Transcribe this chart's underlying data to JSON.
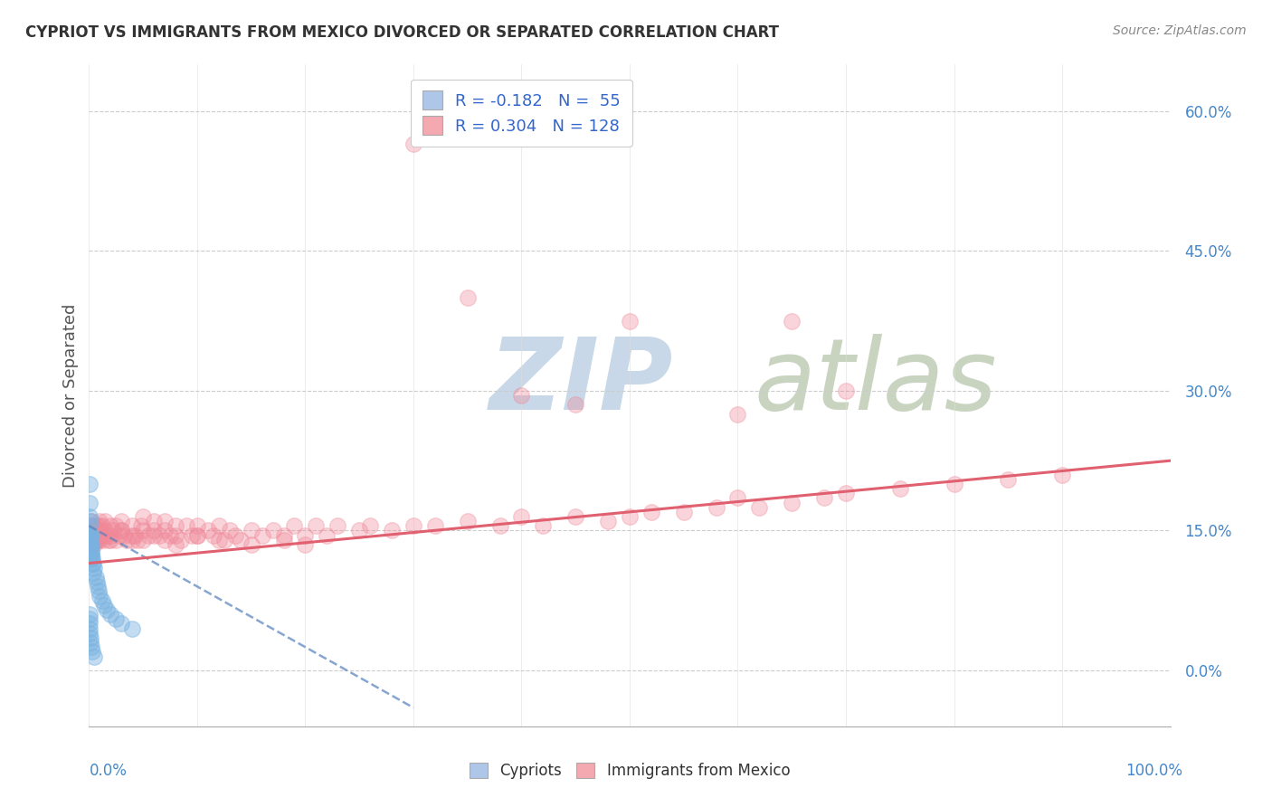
{
  "title": "CYPRIOT VS IMMIGRANTS FROM MEXICO DIVORCED OR SEPARATED CORRELATION CHART",
  "source_text": "Source: ZipAtlas.com",
  "ylabel": "Divorced or Separated",
  "watermark": "ZIPatlas",
  "bg_color": "#ffffff",
  "grid_color": "#cccccc",
  "cypriot_dot_color": "#7ab3e0",
  "mexico_dot_color": "#f08898",
  "cypriot_line_color": "#5580bb",
  "mexico_line_color": "#e06070",
  "legend_box_color_cypriot": "#aec6e8",
  "legend_box_color_mexico": "#f4a8b0",
  "title_color": "#333333",
  "watermark_color_zip": "#c8d8e8",
  "watermark_color_atlas": "#c8d4c0",
  "R_cypriot": -0.182,
  "N_cypriot": 55,
  "R_mexico": 0.304,
  "N_mexico": 128,
  "xlim": [
    0.0,
    1.0
  ],
  "ylim": [
    -0.06,
    0.65
  ],
  "yticks": [
    0.0,
    0.15,
    0.3,
    0.45,
    0.6
  ],
  "xtick_left_label": "0.0%",
  "xtick_right_label": "100.0%",
  "cypriot_trend_x0": 0.0,
  "cypriot_trend_x1": 0.3,
  "cypriot_trend_y0": 0.155,
  "cypriot_trend_y1": -0.04,
  "mexico_trend_x0": 0.0,
  "mexico_trend_x1": 1.0,
  "mexico_trend_y0": 0.115,
  "mexico_trend_y1": 0.225,
  "cypriot_x": [
    0.0003,
    0.0003,
    0.0005,
    0.0005,
    0.0005,
    0.0006,
    0.0006,
    0.0007,
    0.0007,
    0.0008,
    0.0008,
    0.0009,
    0.0009,
    0.001,
    0.001,
    0.0012,
    0.0012,
    0.0013,
    0.0014,
    0.0015,
    0.0016,
    0.0017,
    0.0018,
    0.002,
    0.002,
    0.0022,
    0.0023,
    0.0025,
    0.003,
    0.003,
    0.004,
    0.004,
    0.005,
    0.006,
    0.007,
    0.008,
    0.009,
    0.01,
    0.012,
    0.014,
    0.016,
    0.02,
    0.025,
    0.03,
    0.04,
    0.0003,
    0.0004,
    0.0005,
    0.0006,
    0.0007,
    0.001,
    0.0015,
    0.002,
    0.003,
    0.005
  ],
  "cypriot_y": [
    0.2,
    0.18,
    0.165,
    0.155,
    0.145,
    0.14,
    0.13,
    0.145,
    0.135,
    0.14,
    0.13,
    0.145,
    0.125,
    0.16,
    0.13,
    0.145,
    0.125,
    0.14,
    0.135,
    0.14,
    0.13,
    0.14,
    0.135,
    0.145,
    0.125,
    0.13,
    0.12,
    0.125,
    0.12,
    0.115,
    0.115,
    0.105,
    0.11,
    0.1,
    0.095,
    0.09,
    0.085,
    0.08,
    0.075,
    0.07,
    0.065,
    0.06,
    0.055,
    0.05,
    0.045,
    0.06,
    0.055,
    0.05,
    0.045,
    0.04,
    0.035,
    0.03,
    0.025,
    0.02,
    0.015
  ],
  "mexico_x": [
    0.001,
    0.001,
    0.001,
    0.002,
    0.002,
    0.002,
    0.003,
    0.003,
    0.003,
    0.004,
    0.004,
    0.005,
    0.005,
    0.005,
    0.006,
    0.006,
    0.007,
    0.007,
    0.008,
    0.008,
    0.009,
    0.01,
    0.01,
    0.01,
    0.012,
    0.012,
    0.013,
    0.015,
    0.015,
    0.016,
    0.018,
    0.02,
    0.02,
    0.022,
    0.025,
    0.025,
    0.028,
    0.03,
    0.03,
    0.032,
    0.035,
    0.04,
    0.04,
    0.042,
    0.045,
    0.048,
    0.05,
    0.05,
    0.055,
    0.06,
    0.06,
    0.065,
    0.07,
    0.07,
    0.075,
    0.08,
    0.08,
    0.085,
    0.09,
    0.095,
    0.1,
    0.1,
    0.11,
    0.115,
    0.12,
    0.125,
    0.13,
    0.135,
    0.14,
    0.15,
    0.16,
    0.17,
    0.18,
    0.19,
    0.2,
    0.21,
    0.22,
    0.23,
    0.25,
    0.26,
    0.28,
    0.3,
    0.32,
    0.35,
    0.38,
    0.4,
    0.42,
    0.45,
    0.48,
    0.5,
    0.52,
    0.55,
    0.58,
    0.6,
    0.62,
    0.65,
    0.68,
    0.7,
    0.75,
    0.8,
    0.85,
    0.9,
    0.5,
    0.6,
    0.65,
    0.7,
    0.3,
    0.35,
    0.4,
    0.45,
    0.002,
    0.003,
    0.005,
    0.007,
    0.01,
    0.015,
    0.02,
    0.03,
    0.04,
    0.05,
    0.06,
    0.07,
    0.08,
    0.1,
    0.12,
    0.15,
    0.18,
    0.2
  ],
  "mexico_y": [
    0.155,
    0.145,
    0.135,
    0.16,
    0.15,
    0.14,
    0.155,
    0.145,
    0.135,
    0.15,
    0.14,
    0.155,
    0.145,
    0.135,
    0.15,
    0.14,
    0.155,
    0.145,
    0.15,
    0.14,
    0.145,
    0.16,
    0.15,
    0.14,
    0.155,
    0.145,
    0.14,
    0.16,
    0.15,
    0.145,
    0.14,
    0.155,
    0.145,
    0.15,
    0.155,
    0.14,
    0.145,
    0.16,
    0.15,
    0.145,
    0.14,
    0.155,
    0.14,
    0.145,
    0.14,
    0.155,
    0.165,
    0.15,
    0.145,
    0.16,
    0.15,
    0.145,
    0.16,
    0.15,
    0.145,
    0.155,
    0.145,
    0.14,
    0.155,
    0.145,
    0.155,
    0.145,
    0.15,
    0.145,
    0.155,
    0.14,
    0.15,
    0.145,
    0.14,
    0.15,
    0.145,
    0.15,
    0.145,
    0.155,
    0.145,
    0.155,
    0.145,
    0.155,
    0.15,
    0.155,
    0.15,
    0.155,
    0.155,
    0.16,
    0.155,
    0.165,
    0.155,
    0.165,
    0.16,
    0.165,
    0.17,
    0.17,
    0.175,
    0.185,
    0.175,
    0.18,
    0.185,
    0.19,
    0.195,
    0.2,
    0.205,
    0.21,
    0.375,
    0.275,
    0.375,
    0.3,
    0.565,
    0.4,
    0.295,
    0.285,
    0.145,
    0.15,
    0.145,
    0.14,
    0.155,
    0.145,
    0.14,
    0.15,
    0.145,
    0.14,
    0.145,
    0.14,
    0.135,
    0.145,
    0.14,
    0.135,
    0.14,
    0.135
  ]
}
